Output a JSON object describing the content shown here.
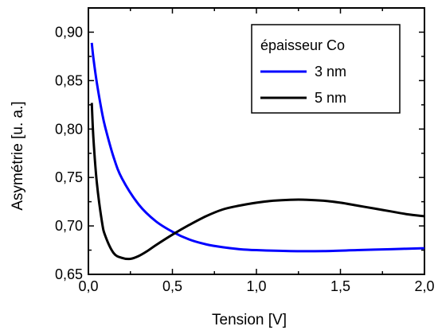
{
  "chart_data": {
    "type": "line",
    "xlabel": "Tension [V]",
    "ylabel": "Asymétrie [u. a.]",
    "xlim": [
      0.0,
      2.0
    ],
    "ylim": [
      0.65,
      0.925
    ],
    "x_ticks": [
      0.0,
      0.5,
      1.0,
      1.5,
      2.0
    ],
    "x_tick_labels": [
      "0,0",
      "0,5",
      "1,0",
      "1,5",
      "2,0"
    ],
    "y_ticks": [
      0.65,
      0.7,
      0.75,
      0.8,
      0.85,
      0.9
    ],
    "y_tick_labels": [
      "0,65",
      "0,70",
      "0,75",
      "0,80",
      "0,85",
      "0,90"
    ],
    "grid": false,
    "legend": {
      "title": "épaisseur Co",
      "placement": "top-right",
      "entries": [
        "3 nm",
        "5 nm"
      ]
    },
    "series": [
      {
        "name": "3 nm",
        "color": "#0000ff",
        "x": [
          0.02,
          0.03,
          0.05,
          0.08,
          0.1,
          0.15,
          0.2,
          0.3,
          0.4,
          0.5,
          0.6,
          0.7,
          0.8,
          0.9,
          1.0,
          1.2,
          1.4,
          1.6,
          1.8,
          2.0
        ],
        "y": [
          0.889,
          0.873,
          0.848,
          0.818,
          0.802,
          0.771,
          0.749,
          0.722,
          0.705,
          0.694,
          0.686,
          0.681,
          0.678,
          0.676,
          0.675,
          0.674,
          0.674,
          0.675,
          0.676,
          0.677
        ]
      },
      {
        "name": "5 nm",
        "color": "#000000",
        "x": [
          0.02,
          0.03,
          0.05,
          0.08,
          0.1,
          0.15,
          0.2,
          0.25,
          0.3,
          0.35,
          0.4,
          0.5,
          0.6,
          0.7,
          0.8,
          0.9,
          1.0,
          1.1,
          1.2,
          1.3,
          1.4,
          1.5,
          1.6,
          1.7,
          1.8,
          1.9,
          2.0
        ],
        "y": [
          0.827,
          0.79,
          0.745,
          0.705,
          0.69,
          0.672,
          0.667,
          0.666,
          0.669,
          0.674,
          0.68,
          0.691,
          0.701,
          0.71,
          0.717,
          0.721,
          0.724,
          0.726,
          0.727,
          0.727,
          0.726,
          0.724,
          0.721,
          0.718,
          0.715,
          0.712,
          0.71
        ]
      }
    ]
  }
}
